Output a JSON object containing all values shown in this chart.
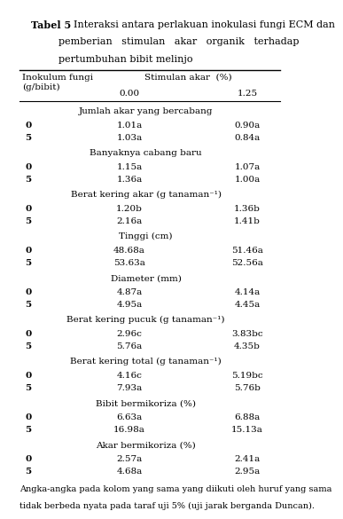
{
  "title_label": "Tabel 5",
  "title_text": "Interaksi antara perlakuan inokulasi fungi ECM dan\npemberian   stimulan   akar   organik   terhadap\npertumbuhan bibit melinjo",
  "col_header_1": "Inokulum fungi\n(g/bibit)",
  "col_header_2": "Stimulan akar  (%)",
  "col_sub_1": "0.00",
  "col_sub_2": "1.25",
  "sections": [
    {
      "section_title": "Jumlah akar yang bercabang",
      "rows": [
        {
          "inokulasi": "0",
          "v1": "1.01a",
          "v2": "0.90a"
        },
        {
          "inokulasi": "5",
          "v1": "1.03a",
          "v2": "0.84a"
        }
      ]
    },
    {
      "section_title": "Banyaknya cabang baru",
      "rows": [
        {
          "inokulasi": "0",
          "v1": "1.15a",
          "v2": "1.07a"
        },
        {
          "inokulasi": "5",
          "v1": "1.36a",
          "v2": "1.00a"
        }
      ]
    },
    {
      "section_title": "Berat kering akar (g tanaman⁻¹)",
      "rows": [
        {
          "inokulasi": "0",
          "v1": "1.20b",
          "v2": "1.36b"
        },
        {
          "inokulasi": "5",
          "v1": "2.16a",
          "v2": "1.41b"
        }
      ]
    },
    {
      "section_title": "Tinggi (cm)",
      "rows": [
        {
          "inokulasi": "0",
          "v1": "48.68a",
          "v2": "51.46a"
        },
        {
          "inokulasi": "5",
          "v1": "53.63a",
          "v2": "52.56a"
        }
      ]
    },
    {
      "section_title": "Diameter (mm)",
      "rows": [
        {
          "inokulasi": "0",
          "v1": "4.87a",
          "v2": "4.14a"
        },
        {
          "inokulasi": "5",
          "v1": "4.95a",
          "v2": "4.45a"
        }
      ]
    },
    {
      "section_title": "Berat kering pucuk (g tanaman⁻¹)",
      "rows": [
        {
          "inokulasi": "0",
          "v1": "2.96c",
          "v2": "3.83bc"
        },
        {
          "inokulasi": "5",
          "v1": "5.76a",
          "v2": "4.35b"
        }
      ]
    },
    {
      "section_title": "Berat kering total (g tanaman⁻¹)",
      "rows": [
        {
          "inokulasi": "0",
          "v1": "4.16c",
          "v2": "5.19bc"
        },
        {
          "inokulasi": "5",
          "v1": "7.93a",
          "v2": "5.76b"
        }
      ]
    },
    {
      "section_title": "Bibit bermikoriza (%)",
      "rows": [
        {
          "inokulasi": "0",
          "v1": "6.63a",
          "v2": "6.88a"
        },
        {
          "inokulasi": "5",
          "v1": "16.98a",
          "v2": "15.13a"
        }
      ]
    },
    {
      "section_title": "Akar bermikoriza (%)",
      "rows": [
        {
          "inokulasi": "0",
          "v1": "2.57a",
          "v2": "2.41a"
        },
        {
          "inokulasi": "5",
          "v1": "4.68a",
          "v2": "2.95a"
        }
      ]
    }
  ],
  "footnote": "Angka-angka pada kolom yang sama yang diikuti oleh huruf yang sama\ntidak berbeda nyata pada taraf uji 5% (uji jarak berganda Duncan).",
  "bg_color": "#ffffff",
  "text_color": "#000000",
  "font_size": 7.5,
  "title_font_size": 8.0
}
